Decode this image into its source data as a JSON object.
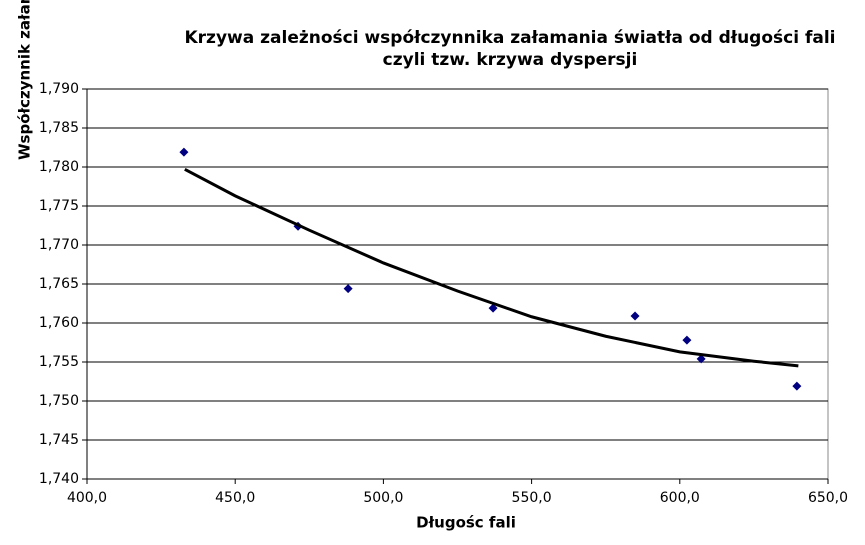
{
  "chart_data": {
    "type": "scatter",
    "title": [
      "Krzywa zależności współczynnika załamania światła od  długości fali",
      "czyli tzw. krzywa dyspersji"
    ],
    "x_label": "Długośc fali",
    "y_label": "Współczynnik załamania",
    "series": [
      {
        "color": "#000080",
        "marker": "diamond",
        "x": [
          432.7,
          471.2,
          488.1,
          537.0,
          584.9,
          602.4,
          607.2,
          639.5
        ],
        "values": [
          1.7819,
          1.7724,
          1.7644,
          1.7619,
          1.7609,
          1.7578,
          1.7554,
          1.7519
        ]
      },
      {
        "color": "#000000",
        "marker": "line",
        "x": [
          433,
          450,
          475,
          500,
          525,
          550,
          575,
          600,
          625,
          640
        ],
        "values": [
          1.7797,
          1.7763,
          1.7719,
          1.7677,
          1.7641,
          1.7608,
          1.7583,
          1.7563,
          1.7551,
          1.7545
        ]
      }
    ],
    "xlim": [
      400,
      650
    ],
    "xticks": [
      {
        "value": 400,
        "label": "400,0"
      },
      {
        "value": 450,
        "label": "450,0"
      },
      {
        "value": 500,
        "label": "500,0"
      },
      {
        "value": 550,
        "label": "550,0"
      },
      {
        "value": 600,
        "label": "600,0"
      },
      {
        "value": 650,
        "label": "650,0"
      }
    ],
    "ylim": [
      1.74,
      1.79
    ],
    "yticks": [
      {
        "value": 1.74,
        "label": "1,740"
      },
      {
        "value": 1.745,
        "label": "1,745"
      },
      {
        "value": 1.75,
        "label": "1,750"
      },
      {
        "value": 1.755,
        "label": "1,755"
      },
      {
        "value": 1.76,
        "label": "1,760"
      },
      {
        "value": 1.765,
        "label": "1,765"
      },
      {
        "value": 1.77,
        "label": "1,770"
      },
      {
        "value": 1.775,
        "label": "1,775"
      },
      {
        "value": 1.78,
        "label": "1,780"
      },
      {
        "value": 1.785,
        "label": "1,785"
      },
      {
        "value": 1.79,
        "label": "1,790"
      }
    ],
    "grid": true
  }
}
